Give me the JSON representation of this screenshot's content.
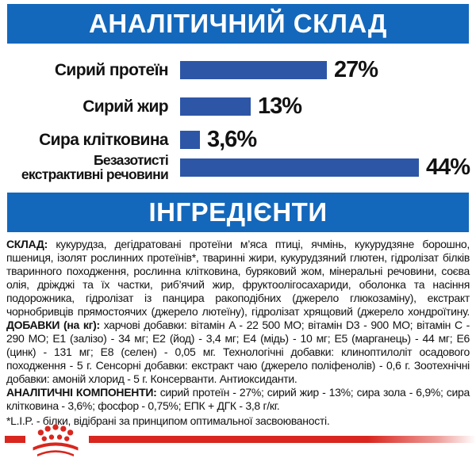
{
  "header1": {
    "title": "АНАЛІТИЧНИЙ СКЛАД"
  },
  "header2": {
    "title": "ІНГРЕДІЄНТИ"
  },
  "chart_data": {
    "type": "bar",
    "title": "АНАЛІТИЧНИЙ СКЛАД",
    "orientation": "horizontal",
    "categories": [
      "Сирий протеїн",
      "Сирий жир",
      "Сира клітковина",
      "Безазотисті екстрактивні речовини"
    ],
    "categories_lines": [
      [
        "Сирий протеїн"
      ],
      [
        "Сирий жир"
      ],
      [
        "Сира клітковина"
      ],
      [
        "Безазотисті",
        "екстрактивні речовини"
      ]
    ],
    "values": [
      27,
      13,
      3.6,
      44
    ],
    "value_labels": [
      "27%",
      "13%",
      "3,6%",
      "44%"
    ],
    "unit": "%",
    "xlim": [
      0,
      44
    ],
    "grid": false,
    "legend": false,
    "bar_color": "#2e56a7"
  },
  "ingredients": {
    "paragraphs": [
      [
        {
          "t": "СКЛАД: ",
          "b": true
        },
        {
          "t": "кукурудза, дегідратовані протеїни м’яса птиці, ячмінь, кукурудзяне борошно, пшениця, ізолят рослинних протеїнів*, тваринні жири, кукурудзяний глютен, гідролізат білків тваринного походження, рослинна клітковина, буряковий жом, мінеральні речовини, соєва олія, дріжджі та їх частки, риб’ячий жир, фруктоолігосахариди, оболонка та насіння подорожника, гідролізат із панцира ракоподібних (джерело глюкозаміну), екстракт чорнобривців прямостоячих (джерело лютеїну), гідролізат хрящовий (джерело хондроїтину. ",
          "b": false
        },
        {
          "t": "ДОБАВКИ (на кг): ",
          "b": true
        },
        {
          "t": "харчові добавки: вітамін A - 22 500 МО; вітамін D3 - 900 МО; вітамін C - 290 МО; Е1 (залізо) - 34 мг; Е2 (йод) - 3,4 мг; Е4 (мідь) - 10 мг; Е5 (марганець) - 44 мг; Е6 (цинк) - 131 мг; Е8 (селен) - 0,05 мг. Технологічні добавки: клиноптилоліт осадового походження - 5 г. Сенсорні добавки: екстракт чаю (джерело поліфенолів) - 0,6 г. Зоотехнічні добавки: амоній хлорид - 5 г. Консерванти. Антиоксиданти.",
          "b": false
        }
      ],
      [
        {
          "t": "АНАЛІТИЧНІ КОМПОНЕНТИ: ",
          "b": true
        },
        {
          "t": "сирий протеїн - 27%; сирий жир - 13%; сира зола - 6,9%; сира клітковина - 3,6%; фосфор - 0,75%; ЕПК + ДГК - 3,8 г/кг.",
          "b": false
        }
      ]
    ],
    "footnote": "*L.I.P. - білки, відібрані за принципом оптимальної засвоюваності."
  },
  "colors": {
    "header_blue": "#1368bc",
    "bar_blue": "#2e56a7",
    "brand_red": "#d9261e",
    "text_black": "#121212"
  },
  "footer": {
    "logo": "royal-canin-crown"
  }
}
